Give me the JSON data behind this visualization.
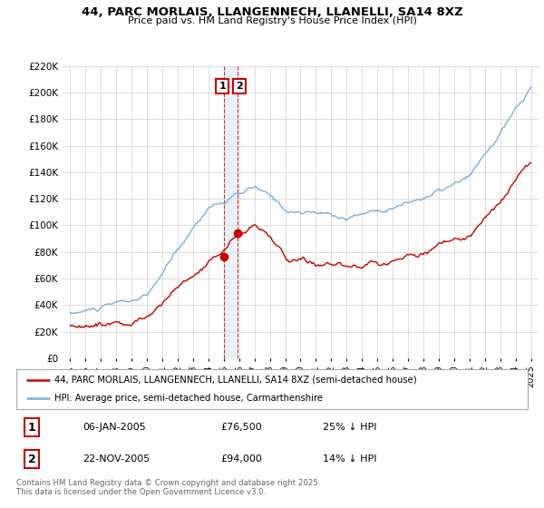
{
  "title": "44, PARC MORLAIS, LLANGENNECH, LLANELLI, SA14 8XZ",
  "subtitle": "Price paid vs. HM Land Registry's House Price Index (HPI)",
  "legend_line1": "44, PARC MORLAIS, LLANGENNECH, LLANELLI, SA14 8XZ (semi-detached house)",
  "legend_line2": "HPI: Average price, semi-detached house, Carmarthenshire",
  "sale1_label": "1",
  "sale1_date": "06-JAN-2005",
  "sale1_price": "£76,500",
  "sale1_hpi": "25% ↓ HPI",
  "sale2_label": "2",
  "sale2_date": "22-NOV-2005",
  "sale2_price": "£94,000",
  "sale2_hpi": "14% ↓ HPI",
  "footer": "Contains HM Land Registry data © Crown copyright and database right 2025.\nThis data is licensed under the Open Government Licence v3.0.",
  "red_color": "#cc0000",
  "blue_color": "#7aafda",
  "vline_color": "#cc0000",
  "marker1_x": 2005.02,
  "marker1_y": 76500,
  "marker2_x": 2005.9,
  "marker2_y": 94000,
  "vline_x1": 2005.0,
  "vline_x2": 2005.92,
  "ylim": [
    0,
    220000
  ],
  "xlim_start": 1994.5,
  "xlim_end": 2025.5,
  "yticks": [
    0,
    20000,
    40000,
    60000,
    80000,
    100000,
    120000,
    140000,
    160000,
    180000,
    200000,
    220000
  ],
  "xticks": [
    1995,
    1996,
    1997,
    1998,
    1999,
    2000,
    2001,
    2002,
    2003,
    2004,
    2005,
    2006,
    2007,
    2008,
    2009,
    2010,
    2011,
    2012,
    2013,
    2014,
    2015,
    2016,
    2017,
    2018,
    2019,
    2020,
    2021,
    2022,
    2023,
    2024,
    2025
  ]
}
